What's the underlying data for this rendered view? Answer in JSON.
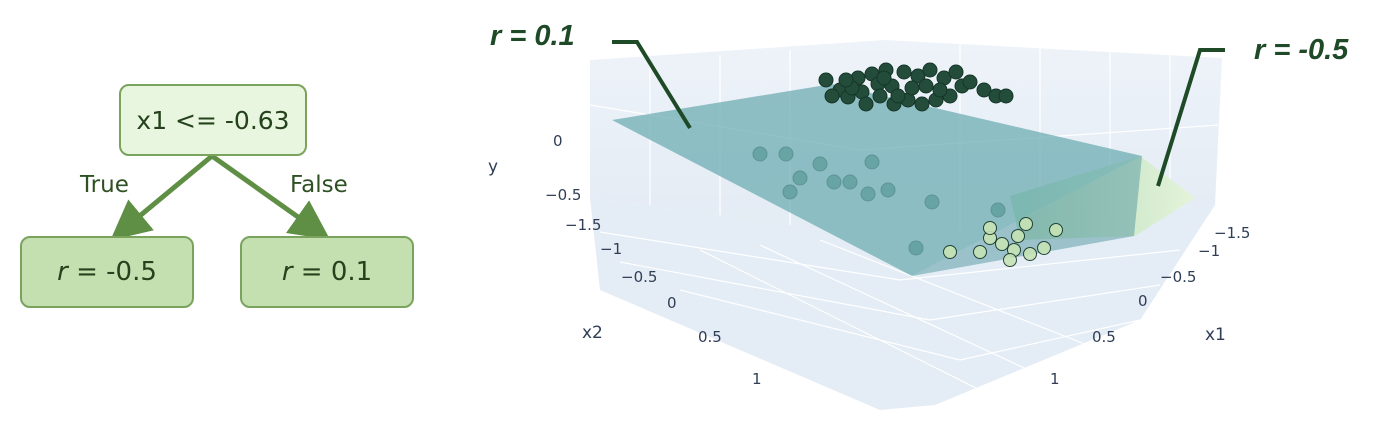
{
  "tree": {
    "root": "x1 <= -0.63",
    "true_branch": "True",
    "false_branch": "False",
    "left_leaf": {
      "var": "r",
      "eq": " = -0.5"
    },
    "right_leaf": {
      "var": "r",
      "eq": " = 0.1"
    }
  },
  "callouts": {
    "left": "r = 0.1",
    "right": "r = -0.5"
  },
  "plot3d": {
    "y_axis_title": "y",
    "x2_axis_title": "x2",
    "x1_axis_title": "x1",
    "y_ticks": [
      "0",
      "−0.5"
    ],
    "x2_ticks": [
      "−1.5",
      "−1",
      "−0.5",
      "0",
      "0.5",
      "1"
    ],
    "x1_ticks": [
      "−1.5",
      "−1",
      "−0.5",
      "0",
      "0.5",
      "1"
    ],
    "colors": {
      "plane_high": "#6aaab0",
      "plane_low": "#d8efc6",
      "marker_dark": "#234d3a",
      "marker_mid": "#3f7e63",
      "marker_light": "#c7e4b5",
      "scene_bg": "#e6eef6"
    }
  }
}
